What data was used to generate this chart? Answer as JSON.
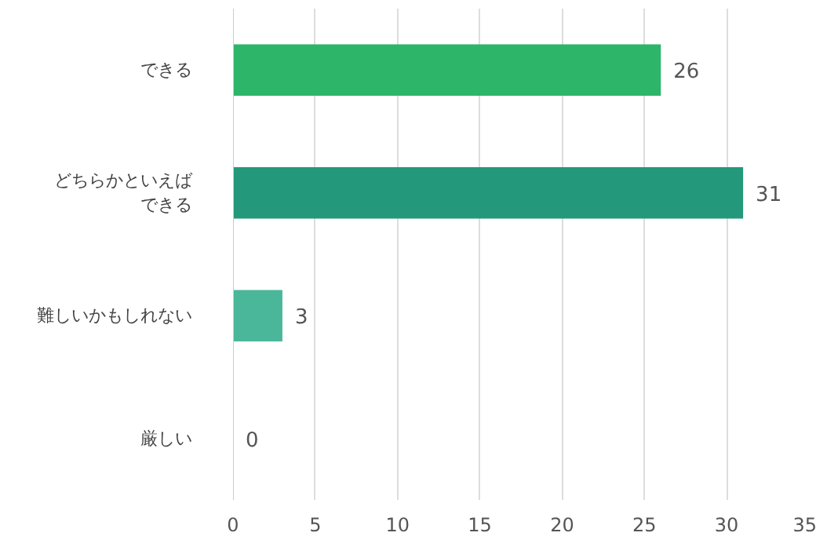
{
  "chart_data": {
    "type": "bar",
    "orientation": "horizontal",
    "categories": [
      "できる",
      "どちらかといえばできる",
      "難しいかもしれない",
      "厳しい"
    ],
    "values": [
      26,
      31,
      3,
      0
    ],
    "colors": [
      "#2db56a",
      "#23987a",
      "#4bb79a",
      "#4bb79a"
    ],
    "xlim": [
      0,
      35
    ],
    "xticks": [
      0,
      5,
      10,
      15,
      20,
      25,
      30,
      35
    ],
    "grid": "x",
    "data_labels": true
  }
}
